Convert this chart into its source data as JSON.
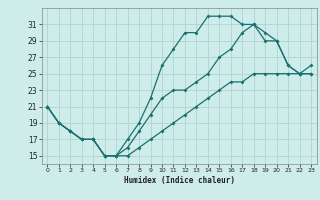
{
  "title": "",
  "xlabel": "Humidex (Indice chaleur)",
  "bg_color": "#ceecea",
  "grid_color": "#aed4d0",
  "line_color": "#1a7070",
  "xlim": [
    -0.5,
    23.5
  ],
  "ylim": [
    14,
    33
  ],
  "xticks": [
    0,
    1,
    2,
    3,
    4,
    5,
    6,
    7,
    8,
    9,
    10,
    11,
    12,
    13,
    14,
    15,
    16,
    17,
    18,
    19,
    20,
    21,
    22,
    23
  ],
  "yticks": [
    15,
    17,
    19,
    21,
    23,
    25,
    27,
    29,
    31
  ],
  "line1_x": [
    0,
    1,
    2,
    3,
    4,
    5,
    6,
    7,
    8,
    9,
    10,
    11,
    12,
    13,
    14,
    15,
    16,
    17,
    18,
    19,
    20,
    21,
    22,
    23
  ],
  "line1_y": [
    21,
    19,
    18,
    17,
    17,
    15,
    15,
    17,
    19,
    22,
    26,
    28,
    30,
    30,
    32,
    32,
    32,
    31,
    31,
    30,
    29,
    26,
    25,
    25
  ],
  "line2_x": [
    0,
    1,
    2,
    3,
    4,
    5,
    6,
    7,
    8,
    9,
    10,
    11,
    12,
    13,
    14,
    15,
    16,
    17,
    18,
    19,
    20,
    21,
    22,
    23
  ],
  "line2_y": [
    21,
    19,
    18,
    17,
    17,
    15,
    15,
    16,
    18,
    20,
    22,
    23,
    23,
    24,
    25,
    27,
    28,
    30,
    31,
    29,
    29,
    26,
    25,
    25
  ],
  "line3_x": [
    0,
    1,
    2,
    3,
    4,
    5,
    6,
    7,
    8,
    9,
    10,
    11,
    12,
    13,
    14,
    15,
    16,
    17,
    18,
    19,
    20,
    21,
    22,
    23
  ],
  "line3_y": [
    21,
    19,
    18,
    17,
    17,
    15,
    15,
    15,
    16,
    17,
    18,
    19,
    20,
    21,
    22,
    23,
    24,
    24,
    25,
    25,
    25,
    25,
    25,
    26
  ]
}
